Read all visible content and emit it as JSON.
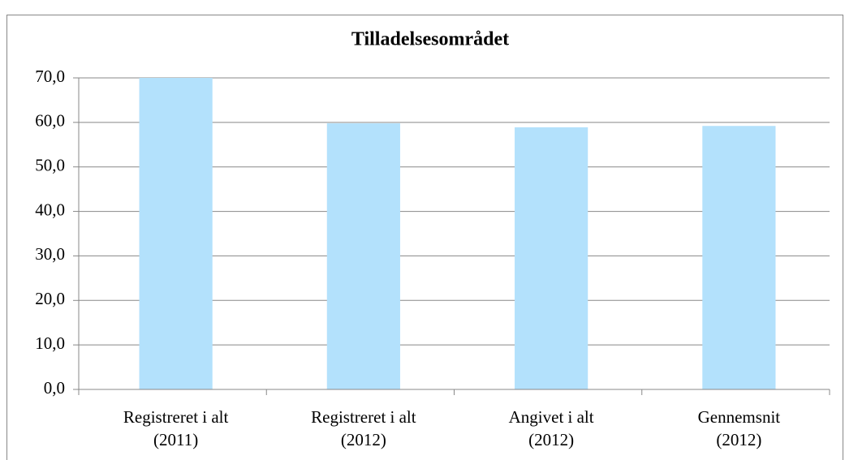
{
  "chart_data": {
    "type": "bar",
    "title": "Tilladelsesområdet",
    "categories": [
      "Registreret i alt\n(2011)",
      "Registreret i alt\n(2012)",
      "Angivet i alt\n(2012)",
      "Gennemsnit\n(2012)"
    ],
    "values": [
      70.0,
      59.8,
      58.9,
      59.2
    ],
    "color": "#b3e1fc",
    "ylim": [
      0,
      70
    ],
    "yticks": [
      {
        "value": 0,
        "label": "0,0"
      },
      {
        "value": 10,
        "label": "10,0"
      },
      {
        "value": 20,
        "label": "20,0"
      },
      {
        "value": 30,
        "label": "30,0"
      },
      {
        "value": 40,
        "label": "40,0"
      },
      {
        "value": 50,
        "label": "50,0"
      },
      {
        "value": 60,
        "label": "60,0"
      },
      {
        "value": 70,
        "label": "70,0"
      }
    ],
    "grid": true
  }
}
